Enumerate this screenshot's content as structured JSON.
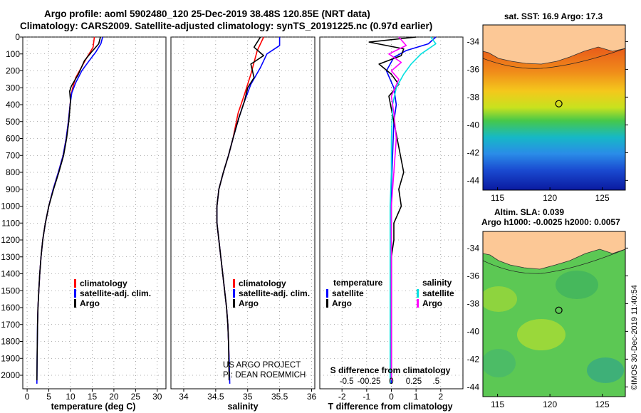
{
  "titles": {
    "line1": "Argo profile: aoml 5902480_120 25-Dec-2019 38.48S 120.85E (NRT data)",
    "line2": "Climatology: CARS2009. Satellite-adjusted climatology: synTS_20191225.nc (0.97d earlier)",
    "map1": "sat. SST: 16.9 Argo: 17.3",
    "map2_line1": "Altim. SLA: 0.039",
    "map2_line2": "Argo h1000: -0.0025 h2000: 0.0057"
  },
  "credits": {
    "project": "US ARGO PROJECT",
    "pi": "PI: DEAN ROEMMICH",
    "imos": "©IMOS 30-Dec-2019 11:40:54"
  },
  "colors": {
    "climatology": "#ff0000",
    "satellite": "#0000ff",
    "argo": "#000000",
    "salinity_satellite": "#00e0e0",
    "salinity_argo": "#ff00ff",
    "land": "#fcc896"
  },
  "chart_data": [
    {
      "type": "line",
      "name": "temperature",
      "xlabel": "temperature (deg C)",
      "ylabel": "",
      "xlim": [
        -1,
        32
      ],
      "ylim": [
        2080,
        0
      ],
      "xticks": [
        0,
        5,
        10,
        15,
        20,
        25,
        30
      ],
      "yticks": [
        0,
        100,
        200,
        300,
        400,
        500,
        600,
        700,
        800,
        900,
        1000,
        1100,
        1200,
        1300,
        1400,
        1500,
        1600,
        1700,
        1800,
        1900,
        2000
      ],
      "legend": [
        "climatology",
        "satellite-adj. clim.",
        "Argo"
      ],
      "legend_position": "center",
      "series": [
        {
          "name": "climatology",
          "color": "#ff0000",
          "x": [
            15.5,
            15.2,
            13.8,
            12.5,
            11.2,
            10.5,
            10.1,
            9.9,
            9.5,
            9.0,
            8.3,
            7.2,
            6.0,
            5.0,
            4.2,
            3.6,
            3.2,
            2.9,
            2.7,
            2.5,
            2.4
          ],
          "y": [
            0,
            60,
            120,
            180,
            240,
            300,
            350,
            400,
            500,
            600,
            700,
            800,
            900,
            1000,
            1100,
            1200,
            1300,
            1400,
            1500,
            1600,
            1700
          ]
        },
        {
          "name": "satellite-adj. clim.",
          "color": "#0000ff",
          "x": [
            17.4,
            17.0,
            15.8,
            14.3,
            12.6,
            11.2,
            10.3,
            9.9,
            9.5,
            9.0,
            8.3,
            7.2,
            6.0,
            5.0,
            4.2,
            3.6,
            3.2,
            2.9,
            2.7,
            2.5,
            2.4,
            2.3,
            2.25
          ],
          "y": [
            0,
            40,
            90,
            140,
            200,
            270,
            330,
            400,
            500,
            600,
            700,
            800,
            900,
            1000,
            1100,
            1200,
            1300,
            1400,
            1500,
            1600,
            1700,
            1900,
            2050
          ]
        },
        {
          "name": "Argo",
          "color": "#000000",
          "x": [
            16.9,
            16.5,
            14.8,
            13.2,
            11.8,
            10.2,
            9.8,
            10.0,
            9.6,
            9.1,
            8.4,
            7.3,
            6.1,
            5.0,
            4.2,
            3.6,
            3.2,
            2.9,
            2.7,
            2.5,
            2.4,
            2.3,
            2.25
          ],
          "y": [
            0,
            40,
            90,
            140,
            220,
            290,
            320,
            380,
            500,
            600,
            700,
            800,
            900,
            1000,
            1100,
            1200,
            1300,
            1400,
            1500,
            1600,
            1700,
            1900,
            2030
          ]
        }
      ]
    },
    {
      "type": "line",
      "name": "salinity",
      "xlabel": "salinity",
      "xlim": [
        33.8,
        36.05
      ],
      "ylim": [
        2080,
        0
      ],
      "xticks": [
        34,
        34.5,
        35,
        35.5,
        36
      ],
      "legend": [
        "climatology",
        "satellite-adj. clim.",
        "Argo"
      ],
      "legend_position": "center",
      "series": [
        {
          "name": "climatology",
          "color": "#ff0000",
          "x": [
            35.25,
            35.15,
            35.1,
            35.05,
            35.0,
            34.95,
            34.85,
            34.77,
            34.7,
            34.62,
            34.55,
            34.52,
            34.52,
            34.55,
            34.58,
            34.61,
            34.64,
            34.67,
            34.69,
            34.7,
            34.71
          ],
          "y": [
            0,
            80,
            150,
            220,
            280,
            340,
            450,
            600,
            700,
            800,
            900,
            1000,
            1100,
            1200,
            1300,
            1400,
            1500,
            1600,
            1700,
            1800,
            1900
          ]
        },
        {
          "name": "satellite-adj. clim.",
          "color": "#0000ff",
          "x": [
            35.5,
            35.5,
            35.3,
            35.2,
            35.05,
            34.95,
            34.86,
            34.77,
            34.7,
            34.62,
            34.55,
            34.52,
            34.52,
            34.55,
            34.58,
            34.61,
            34.64,
            34.67,
            34.69,
            34.7,
            34.71,
            34.72
          ],
          "y": [
            0,
            50,
            100,
            180,
            280,
            380,
            480,
            600,
            700,
            800,
            900,
            1000,
            1100,
            1200,
            1300,
            1400,
            1500,
            1600,
            1700,
            1800,
            1900,
            2050
          ]
        },
        {
          "name": "Argo",
          "color": "#000000",
          "x": [
            35.2,
            35.1,
            35.25,
            35.05,
            35.1,
            35.0,
            34.95,
            34.86,
            34.77,
            34.7,
            34.62,
            34.55,
            34.52,
            34.52,
            34.55,
            34.58,
            34.61,
            34.64,
            34.67,
            34.69,
            34.7,
            34.71
          ],
          "y": [
            0,
            60,
            110,
            160,
            240,
            300,
            380,
            480,
            600,
            700,
            800,
            900,
            1000,
            1100,
            1200,
            1300,
            1400,
            1500,
            1600,
            1700,
            1800,
            2030
          ]
        }
      ]
    },
    {
      "type": "line",
      "name": "difference",
      "xlabel": "T difference from climatology",
      "xlabel_top": "S difference from climatology",
      "xlim": [
        -2.9,
        2.9
      ],
      "ylim": [
        2080,
        0
      ],
      "xticks": [
        -2,
        -1,
        0,
        1,
        2
      ],
      "xticks_salinity": [
        -0.5,
        -0.25,
        0,
        0.25,
        0.5
      ],
      "legend_left_title": "temperature",
      "legend_right_title": "salinity",
      "legend_left": [
        "satellite",
        "Argo"
      ],
      "legend_right": [
        "satellite",
        "Argo"
      ],
      "series": [
        {
          "name": "temperature satellite",
          "color": "#0000ff",
          "x": [
            1.8,
            1.5,
            0.6,
            0.1,
            -0.2,
            0.1,
            0.2,
            0.1,
            0.05,
            0.0,
            0.0,
            0.0,
            0.0,
            0.0,
            0.0,
            0.0
          ],
          "y": [
            0,
            40,
            80,
            120,
            200,
            300,
            400,
            500,
            700,
            900,
            1100,
            1300,
            1500,
            1700,
            1900,
            2050
          ]
        },
        {
          "name": "temperature Argo",
          "color": "#000000",
          "x": [
            1.0,
            -0.9,
            0.5,
            0.4,
            -0.5,
            0.0,
            0.3,
            -0.1,
            0.1,
            0.3,
            0.5,
            0.3,
            0.4,
            0.1,
            0.1,
            0.0,
            0.0,
            0.0,
            0.0
          ],
          "y": [
            0,
            30,
            70,
            110,
            160,
            220,
            280,
            350,
            500,
            650,
            800,
            900,
            1000,
            1100,
            1200,
            1300,
            1500,
            1800,
            2030
          ]
        },
        {
          "name": "salinity satellite",
          "color": "#00e0e0",
          "x": [
            1.6,
            1.8,
            1.2,
            0.8,
            0.5,
            0.2,
            0.05,
            0.0,
            0.0,
            -0.05,
            -0.05,
            -0.05,
            -0.05
          ],
          "y": [
            0,
            40,
            100,
            160,
            220,
            300,
            400,
            600,
            800,
            1000,
            1400,
            1800,
            2050
          ]
        },
        {
          "name": "salinity Argo",
          "color": "#ff00ff",
          "x": [
            0.3,
            0.6,
            -0.1,
            0.4,
            0.0,
            0.3,
            0.0,
            0.1,
            0.2,
            0.1,
            0.0,
            0.0,
            0.0
          ],
          "y": [
            0,
            50,
            100,
            150,
            200,
            250,
            350,
            450,
            600,
            800,
            1000,
            1400,
            2030
          ]
        }
      ]
    }
  ],
  "maps": [
    {
      "xticks": [
        115,
        120,
        125
      ],
      "yticks": [
        -34,
        -36,
        -38,
        -40,
        -42,
        -44
      ],
      "marker_lon": 120.85,
      "marker_lat": -38.48
    },
    {
      "xticks": [
        115,
        120,
        125
      ],
      "yticks": [
        -34,
        -36,
        -38,
        -40,
        -42,
        -44
      ],
      "marker_lon": 120.85,
      "marker_lat": -38.48
    }
  ]
}
